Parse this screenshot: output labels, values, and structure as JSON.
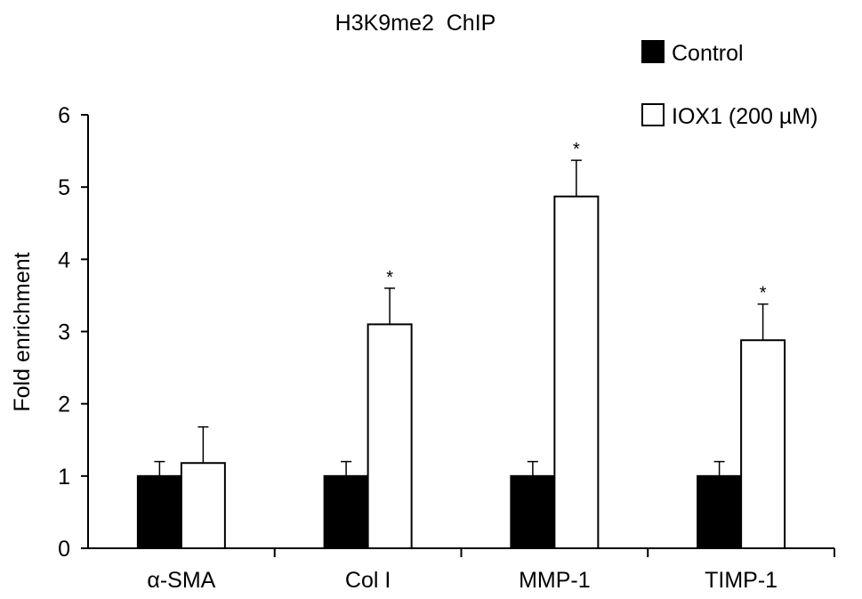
{
  "chart_data": {
    "type": "bar",
    "title": "H3K9me2  ChIP",
    "ylabel": "Fold enrichment",
    "xlabel": "",
    "ylim": [
      0,
      6
    ],
    "yticks": [
      "0",
      "1",
      "2",
      "3",
      "4",
      "5",
      "6"
    ],
    "categories": [
      "α-SMA",
      "Col I",
      "MMP-1",
      "TIMP-1"
    ],
    "series": [
      {
        "name": "Control",
        "values": [
          1.0,
          1.0,
          1.0,
          1.0
        ],
        "errors": [
          0.2,
          0.2,
          0.2,
          0.2
        ],
        "color": "#000000"
      },
      {
        "name": "IOX1 (200 µM)",
        "values": [
          1.18,
          3.1,
          4.87,
          2.88
        ],
        "errors": [
          0.5,
          0.5,
          0.5,
          0.5
        ],
        "color": "#ffffff"
      }
    ],
    "significance": [
      "",
      "*",
      "*",
      "*"
    ],
    "grid": false,
    "legend_position": "top-right"
  }
}
